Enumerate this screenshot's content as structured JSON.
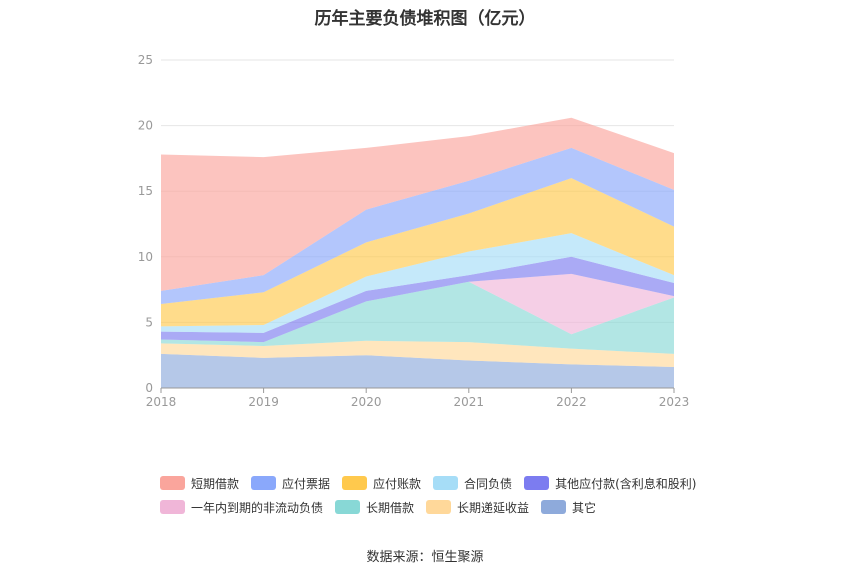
{
  "chart_data": {
    "type": "area",
    "stacked": true,
    "title": "历年主要负债堆积图（亿元）",
    "categories": [
      "2018",
      "2019",
      "2020",
      "2021",
      "2022",
      "2023"
    ],
    "ylim": [
      0,
      25
    ],
    "yticks": [
      0,
      5,
      10,
      15,
      20,
      25
    ],
    "grid": true,
    "legend_position": "bottom",
    "series": [
      {
        "name": "其它",
        "color": "#8eaadb",
        "values": [
          2.6,
          2.3,
          2.5,
          2.1,
          1.8,
          1.6
        ]
      },
      {
        "name": "长期递延收益",
        "color": "#ffd89a",
        "values": [
          0.8,
          0.9,
          1.1,
          1.4,
          1.2,
          1.0
        ]
      },
      {
        "name": "长期借款",
        "color": "#88d8d6",
        "values": [
          0.3,
          0.3,
          3.0,
          4.6,
          1.1,
          4.3
        ]
      },
      {
        "name": "一年内到期的非流动负债",
        "color": "#f0b6d8",
        "values": [
          0.0,
          0.0,
          0.0,
          0.0,
          4.6,
          0.1
        ]
      },
      {
        "name": "其他应付款(含利息和股利)",
        "color": "#7c7cf0",
        "values": [
          0.6,
          0.7,
          0.8,
          0.5,
          1.3,
          1.0
        ]
      },
      {
        "name": "合同负债",
        "color": "#a6ddf7",
        "values": [
          0.4,
          0.6,
          1.1,
          1.8,
          1.8,
          0.6
        ]
      },
      {
        "name": "应付账款",
        "color": "#ffc94d",
        "values": [
          1.7,
          2.5,
          2.6,
          2.9,
          4.2,
          3.7
        ]
      },
      {
        "name": "应付票据",
        "color": "#8aa8fb",
        "values": [
          1.0,
          1.3,
          2.5,
          2.5,
          2.3,
          2.8
        ]
      },
      {
        "name": "短期借款",
        "color": "#faa59c",
        "values": [
          10.4,
          9.0,
          4.7,
          3.4,
          2.3,
          2.8
        ]
      }
    ],
    "source": "数据来源：恒生聚源"
  },
  "legend_rows": [
    [
      {
        "name": "短期借款",
        "color": "#faa59c"
      },
      {
        "name": "应付票据",
        "color": "#8aa8fb"
      },
      {
        "name": "应付账款",
        "color": "#ffc94d"
      },
      {
        "name": "合同负债",
        "color": "#a6ddf7"
      },
      {
        "name": "其他应付款(含利息和股利)",
        "color": "#7c7cf0"
      }
    ],
    [
      {
        "name": "一年内到期的非流动负债",
        "color": "#f0b6d8"
      },
      {
        "name": "长期借款",
        "color": "#88d8d6"
      },
      {
        "name": "长期递延收益",
        "color": "#ffd89a"
      },
      {
        "name": "其它",
        "color": "#8eaadb"
      }
    ]
  ]
}
